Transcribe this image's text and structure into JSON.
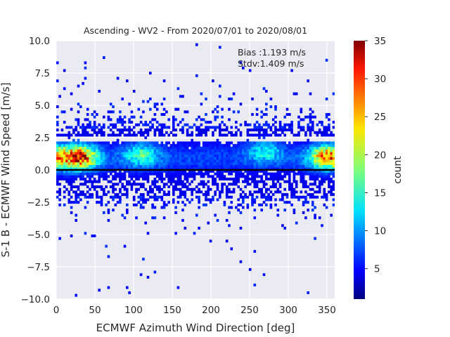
{
  "chart_data": {
    "type": "heatmap",
    "title": "Ascending - WV2 - From 2020/07/01 to 2020/08/01",
    "xlabel": "ECMWF Azimuth Wind Direction [deg]",
    "ylabel": "S-1 B - ECMWF Wind Speed [m/s]",
    "xlim": [
      0,
      360
    ],
    "ylim": [
      -10,
      10
    ],
    "xticks": [
      "0",
      "50",
      "100",
      "150",
      "200",
      "250",
      "300",
      "350"
    ],
    "xtick_values": [
      0,
      50,
      100,
      150,
      200,
      250,
      300,
      350
    ],
    "yticks": [
      "−10.0",
      "−7.5",
      "−5.0",
      "−2.5",
      "0.0",
      "2.5",
      "5.0",
      "7.5",
      "10.0"
    ],
    "ytick_values": [
      -10,
      -7.5,
      -5,
      -2.5,
      0,
      2.5,
      5,
      7.5,
      10
    ],
    "grid": true,
    "zero_line": 0,
    "annotations": [
      "Bias :1.193 m/s",
      "Stdv:1.409 m/s"
    ],
    "colorbar": {
      "label": "count",
      "range": [
        1,
        35
      ],
      "ticks": [
        "5",
        "10",
        "15",
        "20",
        "25",
        "30",
        "35"
      ],
      "tick_values": [
        5,
        10,
        15,
        20,
        25,
        30,
        35
      ],
      "colormap": "jet"
    },
    "density_peaks": [
      {
        "x": 30,
        "y": 1.0,
        "count": 30
      },
      {
        "x": 350,
        "y": 1.0,
        "count": 26
      },
      {
        "x": 110,
        "y": 1.2,
        "count": 14
      },
      {
        "x": 270,
        "y": 1.5,
        "count": 12
      }
    ]
  }
}
